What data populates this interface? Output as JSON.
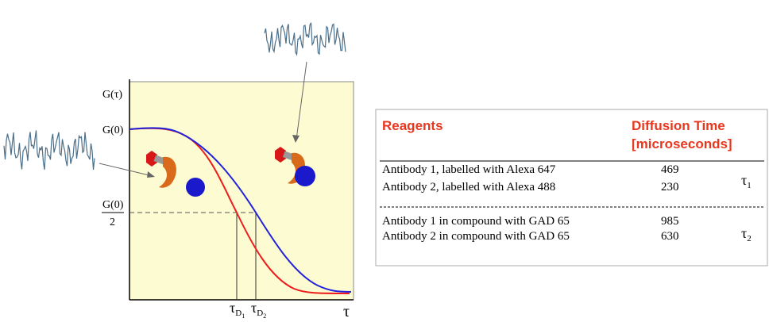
{
  "diagram": {
    "y_axis_label": "G(τ)",
    "g0_label": "G(0)",
    "half_label": {
      "numerator": "G(0)",
      "denominator": "2"
    },
    "x_axis_label": "τ",
    "tau_d1": {
      "base": "τ",
      "sub": "D",
      "index": "1"
    },
    "tau_d2": {
      "base": "τ",
      "sub": "D",
      "index": "2"
    }
  },
  "table": {
    "headers": {
      "reagents": "Reagents",
      "diffusion_time": [
        "Diffusion Time",
        "[microseconds]"
      ]
    },
    "groups": [
      {
        "rows": [
          [
            "Antibody 1, labelled with Alexa 647",
            "469"
          ],
          [
            "Antibody 2, labelled with Alexa 488",
            "230"
          ]
        ],
        "symbol": {
          "base": "τ",
          "index": "1"
        }
      },
      {
        "rows": [
          [
            "Antibody 1 in compound with GAD 65",
            "985"
          ],
          [
            "Antibody 2 in compound with GAD 65",
            "630"
          ]
        ],
        "symbol": {
          "base": "τ",
          "index": "2"
        }
      }
    ]
  }
}
